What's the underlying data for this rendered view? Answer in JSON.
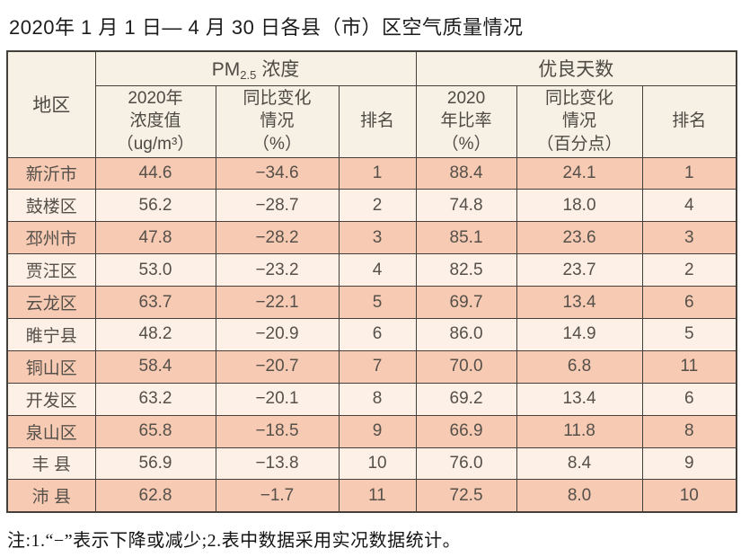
{
  "page_title": "2020年 1 月 1 日— 4 月 30 日各县（市）区空气质量情况",
  "footnote": "注:1.“−”表示下降或减少;2.表中数据采用实况数据统计。",
  "colors": {
    "row_dark": "#f7cab3",
    "row_light": "#fdf0e7",
    "header_bg": "#f7f0e5",
    "border": "#43403c",
    "page_bg": "#ffffff"
  },
  "chart_data": {
    "type": "table",
    "title": "2020年 1 月 1 日— 4 月 30 日各县（市）区空气质量情况",
    "header": {
      "region_label": "地区",
      "pm_group": {
        "prefix": "PM",
        "sub": "2.5",
        "suffix": "浓度"
      },
      "good_group": "优良天数",
      "sub_columns": [
        "2020年\n浓度值\n（ug/m³）",
        "同比变化\n情况\n（%）",
        "排名",
        "2020\n年比率\n（%）",
        "同比变化\n情况\n（百分点）",
        "排名"
      ]
    },
    "rows": [
      {
        "region": "新沂市",
        "pm_value": "44.6",
        "pm_change": "−34.6",
        "pm_rank": "1",
        "good_ratio": "88.4",
        "good_change": "24.1",
        "good_rank": "1"
      },
      {
        "region": "鼓楼区",
        "pm_value": "56.2",
        "pm_change": "−28.7",
        "pm_rank": "2",
        "good_ratio": "74.8",
        "good_change": "18.0",
        "good_rank": "4"
      },
      {
        "region": "邳州市",
        "pm_value": "47.8",
        "pm_change": "−28.2",
        "pm_rank": "3",
        "good_ratio": "85.1",
        "good_change": "23.6",
        "good_rank": "3"
      },
      {
        "region": "贾汪区",
        "pm_value": "53.0",
        "pm_change": "−23.2",
        "pm_rank": "4",
        "good_ratio": "82.5",
        "good_change": "23.7",
        "good_rank": "2"
      },
      {
        "region": "云龙区",
        "pm_value": "63.7",
        "pm_change": "−22.1",
        "pm_rank": "5",
        "good_ratio": "69.7",
        "good_change": "13.4",
        "good_rank": "6"
      },
      {
        "region": "睢宁县",
        "pm_value": "48.2",
        "pm_change": "−20.9",
        "pm_rank": "6",
        "good_ratio": "86.0",
        "good_change": "14.9",
        "good_rank": "5"
      },
      {
        "region": "铜山区",
        "pm_value": "58.4",
        "pm_change": "−20.7",
        "pm_rank": "7",
        "good_ratio": "70.0",
        "good_change": "6.8",
        "good_rank": "11"
      },
      {
        "region": "开发区",
        "pm_value": "63.2",
        "pm_change": "−20.1",
        "pm_rank": "8",
        "good_ratio": "69.2",
        "good_change": "13.4",
        "good_rank": "6"
      },
      {
        "region": "泉山区",
        "pm_value": "65.8",
        "pm_change": "−18.5",
        "pm_rank": "9",
        "good_ratio": "66.9",
        "good_change": "11.8",
        "good_rank": "8"
      },
      {
        "region": "丰 县",
        "pm_value": "56.9",
        "pm_change": "−13.8",
        "pm_rank": "10",
        "good_ratio": "76.0",
        "good_change": "8.4",
        "good_rank": "9"
      },
      {
        "region": "沛 县",
        "pm_value": "62.8",
        "pm_change": "−1.7",
        "pm_rank": "11",
        "good_ratio": "72.5",
        "good_change": "8.0",
        "good_rank": "10"
      }
    ]
  }
}
